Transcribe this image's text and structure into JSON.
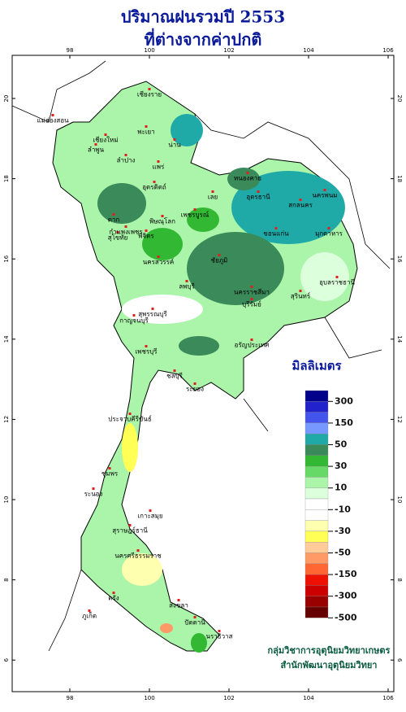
{
  "title": [
    "ปริมาณฝนรวมปี 2553",
    "ที่ต่างจากค่าปกติ"
  ],
  "map": {
    "lon_ticks": [
      98,
      100,
      102,
      104,
      106
    ],
    "lat_ticks": [
      20,
      18,
      16,
      14,
      12,
      10,
      8,
      6
    ],
    "places": [
      "เชียงราย",
      "แม่ฮ่องสอน",
      "เชียงใหม่",
      "ลำพูน",
      "ลำปาง",
      "พะเยา",
      "น่าน",
      "แพร่",
      "อุตรดิตถ์",
      "ตาก",
      "สุโขทัย",
      "พิษณุโลก",
      "กำแพงเพชร",
      "พิจิตร",
      "เพชรบูรณ์",
      "เลย",
      "หนองคาย",
      "อุดรธานี",
      "สกลนคร",
      "นครพนม",
      "มุกดาหาร",
      "ขอนแก่น",
      "ชัยภูมิ",
      "นครสวรรค์",
      "ลพบุรี",
      "นครราชสีมา",
      "บุรีรัมย์",
      "สุรินทร์",
      "อุบลราชธานี",
      "กาญจนบุรี",
      "สุพรรณบุรี",
      "อรัญประเทศ",
      "ชลบุรี",
      "ระยอง",
      "เพชรบุรี",
      "ประจวบคีรีขันธ์",
      "ชุมพร",
      "ระนอง",
      "เกาะสมุย",
      "สุราษฎร์ธานี",
      "นครศรีธรรมราช",
      "ภูเก็ต",
      "ตรัง",
      "สงขลา",
      "ปัตตานี",
      "นราธิวาส"
    ]
  },
  "legend": {
    "title": "มิลลิเมตร",
    "labels": [
      300,
      150,
      50,
      30,
      10,
      -10,
      -30,
      -50,
      -150,
      -300,
      -500
    ],
    "colors": [
      "#00008b",
      "#2222cc",
      "#4455ee",
      "#7799ff",
      "#1faaa8",
      "#3a8a5a",
      "#33b833",
      "#66d966",
      "#aaf5aa",
      "#dcffdc",
      "#ffffff",
      "#ffffff",
      "#ffffb0",
      "#ffff55",
      "#ffcc99",
      "#ff9966",
      "#ff6633",
      "#ee1100",
      "#cc0000",
      "#990000",
      "#660000"
    ]
  },
  "credits": [
    "กลุ่มวิชาการอุตุนิยมวิทยาเกษตร",
    "สำนักพัฒนาอุตุนิยมวิทยา"
  ]
}
